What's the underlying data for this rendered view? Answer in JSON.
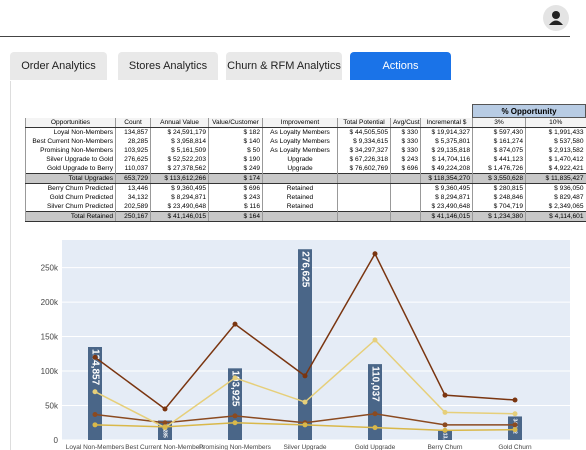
{
  "tabs": [
    "Order Analytics",
    "Stores Analytics",
    "Churn & RFM Analytics",
    "Actions"
  ],
  "table": {
    "group_header": "% Opportunity",
    "columns": [
      "Opportunities",
      "Count",
      "Annual Value",
      "Value/Customer",
      "Improvement",
      "Total Potential",
      "Avg/Cust",
      "Incremental $",
      "3%",
      "10%"
    ],
    "rows": [
      [
        "Loyal Non-Members",
        "134,857",
        "$ 24,591,179",
        "$ 182",
        "As Loyalty Members",
        "$ 44,505,505",
        "$ 330",
        "$ 19,914,327",
        "$ 597,430",
        "$ 1,991,433"
      ],
      [
        "Best Current Non-Members",
        "28,285",
        "$ 3,958,814",
        "$ 140",
        "As Loyalty Members",
        "$ 9,334,615",
        "$ 330",
        "$ 5,375,801",
        "$ 161,274",
        "$ 537,580"
      ],
      [
        "Promising Non-Members",
        "103,925",
        "$ 5,161,509",
        "$ 50",
        "As Loyalty Members",
        "$ 34,297,327",
        "$ 330",
        "$ 29,135,818",
        "$ 874,075",
        "$ 2,913,582"
      ],
      [
        "Silver Upgrade to Gold",
        "276,625",
        "$ 52,522,203",
        "$ 190",
        "Upgrade",
        "$ 67,226,318",
        "$ 243",
        "$ 14,704,116",
        "$ 441,123",
        "$ 1,470,412"
      ],
      [
        "Gold Upgrade to Berry",
        "110,037",
        "$ 27,378,562",
        "$ 249",
        "Upgrade",
        "$ 76,602,769",
        "$ 696",
        "$ 49,224,208",
        "$ 1,476,726",
        "$ 4,922,421"
      ],
      [
        "Total Upgrades",
        "653,729",
        "$ 113,612,266",
        "$ 174",
        null,
        null,
        null,
        "$ 118,354,270",
        "$ 3,550,628",
        "$ 11,835,427"
      ],
      [
        "Berry Churn Predicted",
        "13,446",
        "$ 9,360,495",
        "$ 696",
        "Retained",
        null,
        null,
        "$ 9,360,495",
        "$ 280,815",
        "$ 936,050"
      ],
      [
        "Gold Churn Predicted",
        "34,132",
        "$ 8,294,871",
        "$ 243",
        "Retained",
        null,
        null,
        "$ 8,294,871",
        "$ 248,846",
        "$ 829,487"
      ],
      [
        "Silver Churn Predicted",
        "202,589",
        "$ 23,490,648",
        "$ 116",
        "Retained",
        null,
        null,
        "$ 23,490,648",
        "$ 704,719",
        "$ 2,349,065"
      ],
      [
        "Total Retained",
        "250,167",
        "$ 41,146,015",
        "$ 164",
        null,
        null,
        null,
        "$ 41,146,015",
        "$ 1,234,380",
        "$ 4,114,601"
      ]
    ]
  },
  "chart_data": {
    "type": "bar",
    "categories": [
      "Loyal Non-Members",
      "Best Current Non-Members",
      "Promising Non-Members",
      "Silver Upgrade",
      "Gold Upgrade",
      "Berry Churn",
      "Gold Churn"
    ],
    "values": [
      134857,
      28285,
      103925,
      276625,
      110037,
      13446,
      34132
    ],
    "value_labels": [
      "134,857",
      "28,285",
      "103,925",
      "276,625",
      "110,037",
      "13,446",
      "34,132"
    ],
    "color": "#4a6688",
    "series": [
      {
        "color": "#7a3510",
        "values": [
          120000,
          45000,
          168000,
          93000,
          270000,
          65000,
          58000
        ]
      },
      {
        "color": "#8b4a20",
        "values": [
          37000,
          25000,
          35000,
          25000,
          38000,
          22000,
          22000
        ]
      },
      {
        "color": "#e6cf7a",
        "values": [
          70000,
          18000,
          90000,
          55000,
          145000,
          40000,
          38000
        ]
      },
      {
        "color": "#d9b84a",
        "values": [
          22000,
          19000,
          25000,
          22000,
          18000,
          14000,
          15000
        ]
      }
    ],
    "ylim": [
      0,
      290000
    ],
    "yticks": [
      0,
      {
        "value": 50000,
        "label": "50k"
      },
      {
        "value": 100000,
        "label": "100k"
      },
      {
        "value": 150000,
        "label": "150k"
      },
      {
        "value": 200000,
        "label": "200k"
      },
      {
        "value": 250000,
        "label": "250k"
      }
    ],
    "grid": true
  }
}
